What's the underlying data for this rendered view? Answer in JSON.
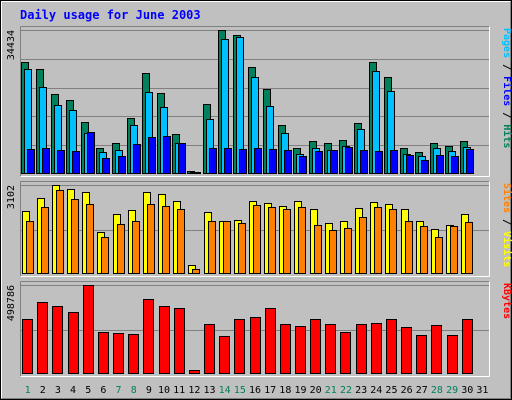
{
  "chart_data": {
    "type": "bar",
    "title": "Daily usage for June 2003",
    "days": [
      "1",
      "2",
      "3",
      "4",
      "5",
      "6",
      "7",
      "8",
      "9",
      "10",
      "11",
      "12",
      "13",
      "14",
      "15",
      "16",
      "17",
      "18",
      "19",
      "20",
      "21",
      "22",
      "23",
      "24",
      "25",
      "26",
      "27",
      "28",
      "29",
      "30",
      "31"
    ],
    "weekend_days": [
      1,
      7,
      8,
      14,
      15,
      21,
      22,
      28,
      29
    ],
    "panels": [
      {
        "id": "hits_files_pages",
        "max_label": "34434",
        "max": 34434,
        "y_legend": [
          {
            "text": "Pages",
            "color": "#00c0ff"
          },
          {
            "text": " / ",
            "color": "#000000"
          },
          {
            "text": "Files",
            "color": "#0000ff"
          },
          {
            "text": " / ",
            "color": "#000000"
          },
          {
            "text": "Hits",
            "color": "#00805c"
          }
        ],
        "series": [
          {
            "name": "Hits",
            "color": "#00805c",
            "values": [
              26800,
              25100,
              19200,
              17800,
              12400,
              6200,
              7400,
              13300,
              24200,
              19300,
              9600,
              700,
              16800,
              34434,
              33200,
              25700,
              20300,
              11800,
              6100,
              7800,
              7500,
              8100,
              12300,
              26700,
              23200,
              6200,
              5300,
              7300,
              6600,
              7900,
              0
            ]
          },
          {
            "name": "Files",
            "color": "#00c0ff",
            "values": [
              25100,
              20700,
              16500,
              15200,
              9900,
              5300,
              5800,
              11800,
              19500,
              16100,
              7400,
              350,
              13200,
              32200,
              32800,
              23200,
              16300,
              9700,
              4800,
              6200,
              5800,
              6600,
              10700,
              24700,
              19800,
              4700,
              4300,
              6300,
              5600,
              6400,
              0
            ]
          },
          {
            "name": "Pages",
            "color": "#0000ff",
            "values": [
              5900,
              6200,
              5800,
              5500,
              10000,
              3800,
              4300,
              7200,
              8900,
              9000,
              7500,
              200,
              6200,
              6300,
              6000,
              6100,
              6000,
              5800,
              4300,
              5600,
              5700,
              6400,
              5700,
              5500,
              5700,
              4600,
              3400,
              4600,
              4200,
              5900,
              0
            ]
          }
        ]
      },
      {
        "id": "visits_sites",
        "max_label": "3102",
        "max": 3102,
        "y_legend": [
          {
            "text": "Sites",
            "color": "#ff8000"
          },
          {
            "text": " / ",
            "color": "#000000"
          },
          {
            "text": "Visits",
            "color": "#ffff00"
          }
        ],
        "series": [
          {
            "name": "Visits",
            "color": "#ffff00",
            "values": [
              2180,
              2640,
              3102,
              2960,
              2860,
              1460,
              2100,
              2230,
              2860,
              2780,
              2530,
              300,
              2160,
              1860,
              1890,
              2540,
              2470,
              2380,
              2540,
              2250,
              1790,
              1850,
              2310,
              2520,
              2430,
              2260,
              1850,
              1560,
              1710,
              2080,
              0
            ]
          },
          {
            "name": "Sites",
            "color": "#ff8000",
            "values": [
              1830,
              2340,
              2930,
              2600,
              2440,
              1290,
              1730,
              1850,
              2450,
              2380,
              2270,
              180,
              1850,
              1830,
              1780,
              2410,
              2320,
              2250,
              2330,
              1720,
              1530,
              1600,
              1990,
              2330,
              2270,
              1830,
              1690,
              1300,
              1690,
              1820,
              0
            ]
          }
        ]
      },
      {
        "id": "kbytes",
        "max_label": "498786",
        "max": 498786,
        "y_legend": [
          {
            "text": "KBytes",
            "color": "#ff0000"
          }
        ],
        "series": [
          {
            "name": "KBytes",
            "color": "#ff0000",
            "values": [
              310000,
              405000,
              380000,
              350000,
              498786,
              235000,
              230000,
              222000,
              420000,
              380000,
              370000,
              25000,
              280000,
              215000,
              310000,
              320000,
              370000,
              282000,
              268000,
              310000,
              278000,
              235000,
              280000,
              285000,
              310000,
              266000,
              220000,
              272000,
              220000,
              310000,
              0
            ]
          }
        ]
      }
    ]
  }
}
